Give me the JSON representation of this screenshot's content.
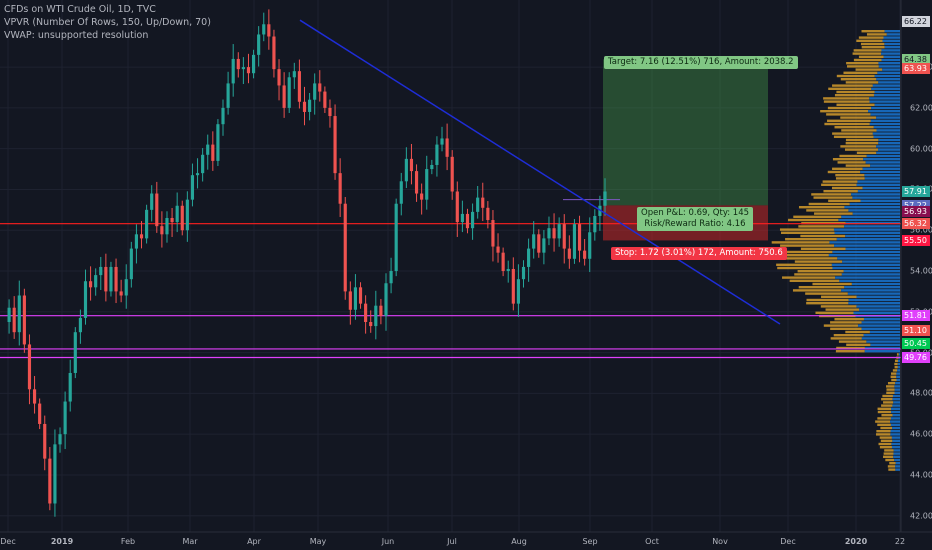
{
  "legend": {
    "line1": "CFDs on WTI Crude Oil, 1D, TVC",
    "line2": "VPVR (Number Of Rows, 150, Up/Down, 70)",
    "line3": "VWAP: unsupported resolution"
  },
  "colors": {
    "background": "#131722",
    "up": "#26a69a",
    "down": "#ef5350",
    "trendline": "#1e2dd6",
    "magenta": "#e040fb",
    "red_line": "#ff1f1f",
    "target_zone": "#4caf50",
    "stop_zone": "#c62828",
    "vp_up": "#1976d2",
    "vp_down": "#d39b2b"
  },
  "position_labels": {
    "target": "Target: 7.16 (12.51%) 716, Amount: 2038.2",
    "open_pl": "Open P&L: 0.69, Qty: 145",
    "risk_reward": "Risk/Reward Ratio: 4.16",
    "stop": "Stop: 1.72 (3.01%) 172, Amount: 750.6"
  },
  "chart_data": {
    "type": "candlestick",
    "title": "CFDs on WTI Crude Oil, 1D, TVC",
    "x_ticks": [
      "Dec",
      "2019",
      "Feb",
      "Mar",
      "Apr",
      "May",
      "Jun",
      "Jul",
      "Aug",
      "Sep",
      "Oct",
      "Nov",
      "Dec",
      "2020",
      "22"
    ],
    "y_ticks": [
      "42.00",
      "44.00",
      "46.00",
      "48.00",
      "50.00",
      "52.00",
      "54.00",
      "56.00",
      "58.00",
      "60.00",
      "62.00",
      "64.00"
    ],
    "ylim": [
      41.3,
      66.8
    ],
    "price_badges": [
      {
        "label": "66.22",
        "value": 66.22,
        "bg": "#d1d4dc",
        "fg": "#131722"
      },
      {
        "label": "64.38",
        "value": 64.38,
        "bg": "#81c784",
        "fg": "#131722"
      },
      {
        "label": "63.93",
        "value": 63.93,
        "bg": "#ef5350",
        "fg": "#ffffff"
      },
      {
        "label": "57.91",
        "value": 57.91,
        "bg": "#26a69a",
        "fg": "#ffffff"
      },
      {
        "label": "57.22",
        "value": 57.22,
        "bg": "#5c6bc0",
        "fg": "#ffffff"
      },
      {
        "label": "56.93",
        "value": 56.93,
        "bg": "#880e4f",
        "fg": "#ffffff"
      },
      {
        "label": "56.32",
        "value": 56.32,
        "bg": "#ef5350",
        "fg": "#ffffff"
      },
      {
        "label": "55.50",
        "value": 55.5,
        "bg": "#ff1744",
        "fg": "#ffffff"
      },
      {
        "label": "51.81",
        "value": 51.81,
        "bg": "#e040fb",
        "fg": "#ffffff"
      },
      {
        "label": "51.10",
        "value": 51.1,
        "bg": "#ef5350",
        "fg": "#ffffff"
      },
      {
        "label": "50.45",
        "value": 50.45,
        "bg": "#00c853",
        "fg": "#ffffff"
      },
      {
        "label": "49.76",
        "value": 49.76,
        "bg": "#e040fb",
        "fg": "#ffffff"
      }
    ],
    "horizontal_lines": [
      {
        "value": 56.32,
        "color": "#ff1f1f"
      },
      {
        "value": 51.81,
        "color": "#e040fb"
      },
      {
        "value": 50.18,
        "color": "#e040fb"
      },
      {
        "value": 49.76,
        "color": "#e040fb"
      }
    ],
    "trendline": {
      "from": {
        "x_index": 0.92,
        "y": 66.3
      },
      "to": {
        "x_index": 1.0,
        "y": 51.4
      }
    },
    "position": {
      "entry": 57.22,
      "target": 64.38,
      "stop": 55.5
    },
    "candle_path": [
      51.5,
      52.2,
      51.0,
      52.8,
      50.4,
      48.2,
      47.5,
      46.5,
      44.8,
      42.6,
      45.5,
      46.0,
      47.6,
      49.0,
      51.0,
      51.7,
      53.5,
      53.2,
      53.8,
      54.2,
      53.0,
      54.2,
      53.0,
      52.8,
      53.6,
      55.1,
      55.8,
      55.6,
      57.0,
      57.8,
      56.2,
      55.8,
      56.6,
      56.4,
      57.2,
      56.0,
      57.5,
      58.7,
      58.8,
      59.7,
      60.2,
      59.4,
      61.2,
      62.0,
      63.2,
      64.4,
      63.9,
      64.0,
      63.7,
      64.6,
      65.6,
      66.1,
      65.5,
      63.9,
      63.1,
      62.0,
      63.5,
      63.8,
      62.3,
      61.8,
      62.4,
      63.2,
      62.8,
      62.0,
      61.6,
      58.8,
      57.3,
      53.0,
      52.1,
      53.2,
      52.4,
      51.5,
      51.3,
      52.3,
      51.8,
      53.4,
      54.0,
      57.3,
      58.4,
      59.5,
      58.9,
      57.8,
      57.5,
      59.0,
      59.2,
      60.2,
      60.5,
      59.6,
      57.9,
      56.4,
      56.8,
      56.1,
      56.9,
      57.6,
      57.1,
      56.5,
      55.2,
      54.9,
      54.0,
      54.1,
      52.4,
      53.6,
      54.2,
      55.1,
      55.8,
      54.9,
      55.6,
      56.1,
      55.6,
      56.3,
      55.1,
      54.6,
      56.3,
      55.0,
      54.6,
      55.9,
      56.7,
      57.2,
      57.9
    ]
  }
}
